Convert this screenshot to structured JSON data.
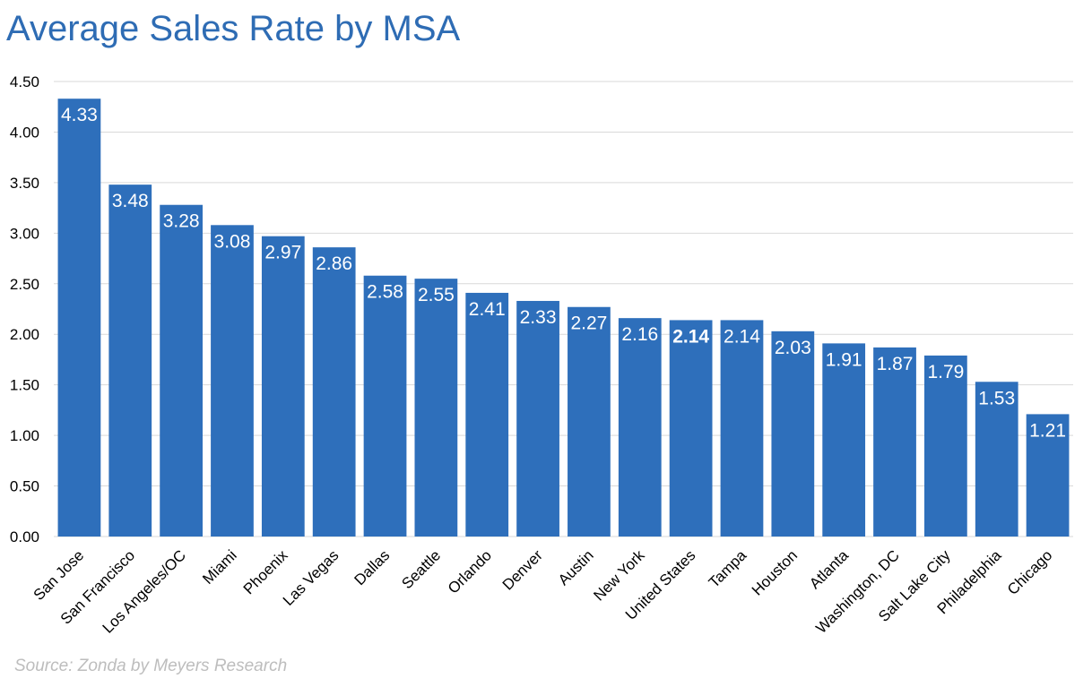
{
  "title": "Average Sales Rate by MSA",
  "source": "Source: Zonda by Meyers Research",
  "colors": {
    "bar": "#2e6fbb",
    "title": "#2e6cb4",
    "grid": "#d9d9d9",
    "axis_text": "#000000",
    "bar_label": "#ffffff",
    "source": "#bdbdbd"
  },
  "chart_data": {
    "type": "bar",
    "title": "Average Sales Rate by MSA",
    "xlabel": "",
    "ylabel": "",
    "ylim": [
      0,
      4.5
    ],
    "yticks": [
      "0.00",
      "0.50",
      "1.00",
      "1.50",
      "2.00",
      "2.50",
      "3.00",
      "3.50",
      "4.00",
      "4.50"
    ],
    "grid": true,
    "legend": "none",
    "categories": [
      "San Jose",
      "San Francisco",
      "Los Angeles/OC",
      "Miami",
      "Phoenix",
      "Las Vegas",
      "Dallas",
      "Seattle",
      "Orlando",
      "Denver",
      "Austin",
      "New York",
      "United States",
      "Tampa",
      "Houston",
      "Atlanta",
      "Washington, DC",
      "Salt Lake City",
      "Philadelphia",
      "Chicago"
    ],
    "values": [
      4.33,
      3.48,
      3.28,
      3.08,
      2.97,
      2.86,
      2.58,
      2.55,
      2.41,
      2.33,
      2.27,
      2.16,
      2.14,
      2.14,
      2.03,
      1.91,
      1.87,
      1.79,
      1.53,
      1.21
    ],
    "data_labels": [
      "4.33",
      "3.48",
      "3.28",
      "3.08",
      "2.97",
      "2.86",
      "2.58",
      "2.55",
      "2.41",
      "2.33",
      "2.27",
      "2.16",
      "2.14",
      "2.14",
      "2.03",
      "1.91",
      "1.87",
      "1.79",
      "1.53",
      "1.21"
    ],
    "highlighted_category": "United States"
  }
}
